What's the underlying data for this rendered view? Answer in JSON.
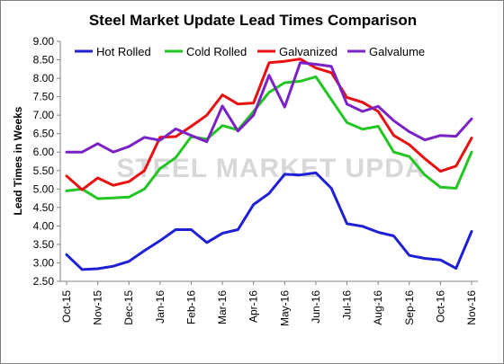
{
  "chart_data": {
    "type": "line",
    "title": "Steel Market Update Lead Times Comparison",
    "xlabel": "",
    "ylabel": "Lead Times in Weeks",
    "ylim": [
      2.5,
      9.0
    ],
    "grid": false,
    "legend_position": "top",
    "watermark": "STEEL MARKET UPDA",
    "x_tick_labels": [
      "Oct-15",
      "Nov-15",
      "Dec-15",
      "Jan-16",
      "Feb-16",
      "Mar-16",
      "Apr-16",
      "May-16",
      "Jun-16",
      "Jul-16",
      "Aug-16",
      "Sep-16",
      "Oct-16",
      "Nov-16"
    ],
    "y_tick_labels": [
      "2.50",
      "3.00",
      "3.50",
      "4.00",
      "4.50",
      "5.00",
      "5.50",
      "6.00",
      "6.50",
      "7.00",
      "7.50",
      "8.00",
      "8.50",
      "9.00"
    ],
    "series": [
      {
        "name": "Hot Rolled",
        "color": "#1f1fd6",
        "values": [
          3.22,
          2.82,
          2.84,
          2.91,
          3.04,
          3.33,
          3.6,
          3.9,
          3.9,
          3.55,
          3.8,
          3.9,
          4.58,
          4.88,
          5.4,
          5.38,
          5.44,
          5.02,
          4.06,
          3.99,
          3.83,
          3.73,
          3.2,
          3.12,
          3.08,
          2.85,
          3.85
        ]
      },
      {
        "name": "Cold Rolled",
        "color": "#22c522",
        "values": [
          4.95,
          5.0,
          4.74,
          4.76,
          4.78,
          5.0,
          5.55,
          5.85,
          6.42,
          6.35,
          6.72,
          6.6,
          7.1,
          7.62,
          7.88,
          7.92,
          8.04,
          7.42,
          6.8,
          6.62,
          6.7,
          6.0,
          5.88,
          5.38,
          5.05,
          5.02,
          6.0
        ]
      },
      {
        "name": "Galvanized",
        "color": "#e81010",
        "values": [
          5.35,
          4.98,
          5.3,
          5.1,
          5.2,
          5.5,
          6.4,
          6.42,
          6.7,
          7.0,
          7.55,
          7.3,
          7.33,
          8.42,
          8.46,
          8.52,
          8.28,
          8.15,
          7.48,
          7.35,
          7.1,
          6.45,
          6.2,
          5.82,
          5.48,
          5.62,
          6.38
        ]
      },
      {
        "name": "Galvalume",
        "color": "#7a22c8",
        "values": [
          6.0,
          6.0,
          6.23,
          6.0,
          6.15,
          6.4,
          6.32,
          6.63,
          6.45,
          6.28,
          7.25,
          6.57,
          7.0,
          8.08,
          7.22,
          8.42,
          8.38,
          8.32,
          7.3,
          7.1,
          7.24,
          6.85,
          6.55,
          6.33,
          6.45,
          6.43,
          6.9
        ]
      }
    ]
  }
}
